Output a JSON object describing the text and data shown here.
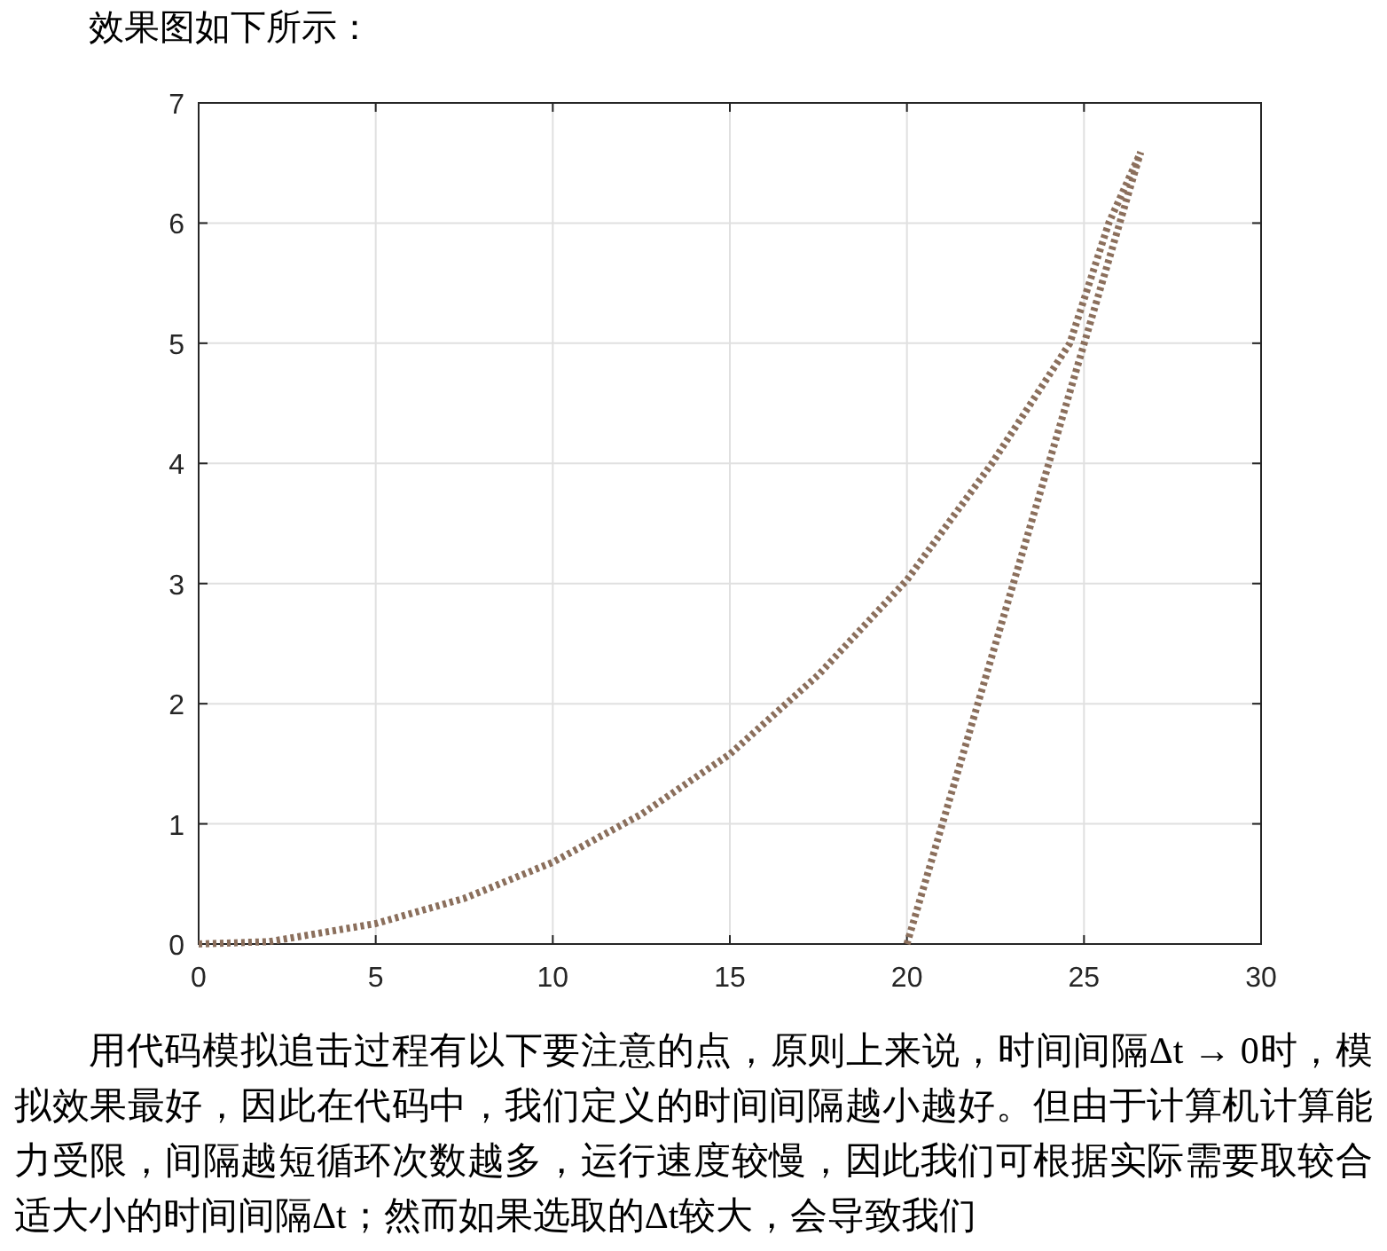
{
  "chart_data": {
    "type": "line",
    "title": "效果图如下所示：",
    "series": [
      {
        "color": "#8b6f5c",
        "x": [
          0,
          2,
          5,
          7.5,
          10,
          12.5,
          15,
          17.5,
          20,
          22.4,
          23.5,
          24.6,
          25.7,
          26.6
        ],
        "values": [
          0,
          0.02,
          0.17,
          0.38,
          0.68,
          1.08,
          1.58,
          2.24,
          3.03,
          4.0,
          4.5,
          5.0,
          6.0,
          6.59
        ]
      },
      {
        "color": "#8b6f5c",
        "x": [
          20,
          26.6
        ],
        "values": [
          0,
          6.59
        ]
      }
    ],
    "xlim": [
      0,
      30
    ],
    "ylim": [
      0,
      7
    ],
    "xticks": [
      0,
      5,
      10,
      15,
      20,
      25,
      30
    ],
    "yticks": [
      0,
      1,
      2,
      3,
      4,
      5,
      6,
      7
    ],
    "grid": true,
    "line_style": "dotted",
    "annotations": [
      "用代码模拟追击过程有以下要注意的点，原则上来说，时间间隔Δt → 0时，模拟效果最好，因此在代码中，我们定义的时间间隔越小越好。但由于计算机计算能力受限，间隔越短循环次数越多，运行速度较慢，因此我们可根据实际需要取较合适大小的时间间隔Δt；然而如果选取的Δt较大，会导致我们"
    ]
  }
}
